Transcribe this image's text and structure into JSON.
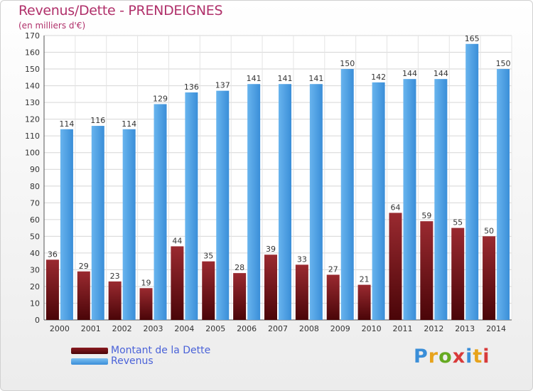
{
  "header": {
    "title": "Revenus/Dette - PRENDEIGNES",
    "subtitle": "(en milliers d'€)"
  },
  "brand": {
    "letters": [
      "P",
      "r",
      "o",
      "x",
      "i",
      "t",
      "i"
    ],
    "colors": [
      "#3a8ed8",
      "#e7a31c",
      "#66aa22",
      "#d83a3a",
      "#3a8ed8",
      "#e7a31c",
      "#d83a3a"
    ]
  },
  "chart_data": {
    "type": "bar",
    "categories": [
      "2000",
      "2001",
      "2002",
      "2003",
      "2004",
      "2005",
      "2006",
      "2007",
      "2008",
      "2009",
      "2010",
      "2011",
      "2012",
      "2013",
      "2014"
    ],
    "series": [
      {
        "name": "Montant de la Dette",
        "color": "#6b0a10",
        "values": [
          36,
          29,
          23,
          19,
          44,
          35,
          28,
          39,
          33,
          27,
          21,
          64,
          59,
          55,
          50
        ]
      },
      {
        "name": "Revenus",
        "color": "#4ea2e6",
        "values": [
          114,
          116,
          114,
          129,
          136,
          137,
          141,
          141,
          141,
          150,
          142,
          144,
          144,
          165,
          150
        ]
      }
    ],
    "ylim": [
      0,
      170
    ],
    "yticks": [
      0,
      10,
      20,
      30,
      40,
      50,
      60,
      70,
      80,
      90,
      100,
      110,
      120,
      130,
      140,
      150,
      160,
      170
    ],
    "grid": true,
    "legend": "bottom-left"
  }
}
